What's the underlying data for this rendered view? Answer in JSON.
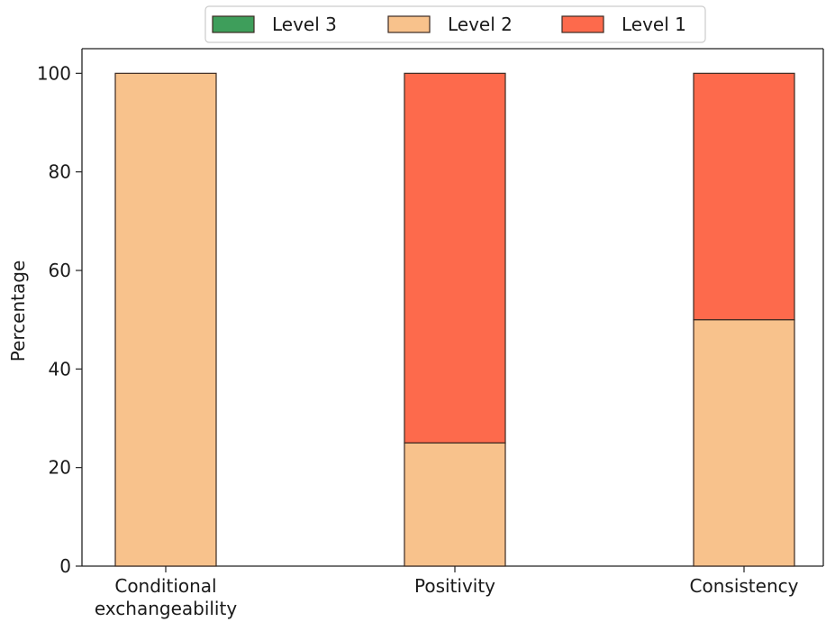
{
  "chart_data": {
    "type": "bar",
    "stacked": true,
    "title": "",
    "xlabel": "",
    "ylabel": "Percentage",
    "ylim": [
      0,
      105
    ],
    "yticks": [
      0,
      20,
      40,
      60,
      80,
      100
    ],
    "grid": false,
    "legend_position": "top-center",
    "categories": [
      [
        "Conditional",
        "exchangeability"
      ],
      [
        "Positivity"
      ],
      [
        "Consistency"
      ]
    ],
    "series": [
      {
        "name": "Level 3",
        "color": "#3e9e5b",
        "values": [
          0,
          0,
          0
        ]
      },
      {
        "name": "Level 2",
        "color": "#f8c28c",
        "values": [
          100,
          25,
          50
        ]
      },
      {
        "name": "Level 1",
        "color": "#fd6a4c",
        "values": [
          0,
          75,
          50
        ]
      }
    ],
    "edge_color": "#3b2a22"
  }
}
